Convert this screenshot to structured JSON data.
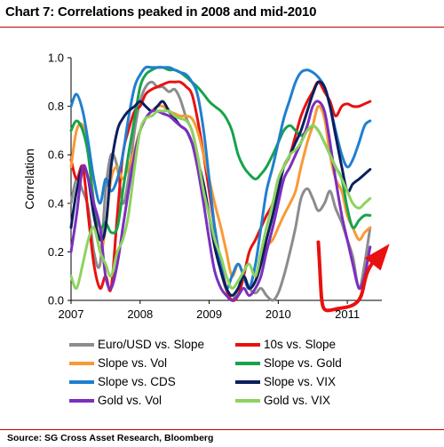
{
  "title": "Chart 7: Correlations peaked in 2008 and mid-2010",
  "source": "Source:  SG Cross Asset Research, Bloomberg",
  "chart_data": {
    "type": "line",
    "title": "Chart 7: Correlations peaked in 2008 and mid-2010",
    "xlabel": "",
    "ylabel": "Correlation",
    "xlim": [
      2007,
      2011.5
    ],
    "ylim": [
      0,
      1
    ],
    "x_ticks": [
      "2007",
      "2008",
      "2009",
      "2010",
      "2011"
    ],
    "y_ticks": [
      "0.0",
      "0.2",
      "0.4",
      "0.6",
      "0.8",
      "1.0"
    ],
    "grid": false,
    "legend_position": "bottom",
    "series": [
      {
        "name": "Euro/USD vs. Slope",
        "color": "#8c8c8c",
        "x": [
          2007.0,
          2007.08,
          2007.17,
          2007.25,
          2007.33,
          2007.42,
          2007.5,
          2007.58,
          2007.67,
          2007.75,
          2007.83,
          2007.92,
          2008.0,
          2008.08,
          2008.17,
          2008.25,
          2008.33,
          2008.42,
          2008.5,
          2008.58,
          2008.67,
          2008.75,
          2008.83,
          2008.92,
          2009.0,
          2009.08,
          2009.17,
          2009.25,
          2009.33,
          2009.42,
          2009.5,
          2009.58,
          2009.67,
          2009.75,
          2009.83,
          2009.92,
          2010.0,
          2010.08,
          2010.17,
          2010.25,
          2010.33,
          2010.42,
          2010.5,
          2010.58,
          2010.67,
          2010.75,
          2010.83,
          2010.92,
          2011.0,
          2011.08,
          2011.17,
          2011.25,
          2011.33
        ],
        "y": [
          0.4,
          0.5,
          0.45,
          0.38,
          0.2,
          0.15,
          0.45,
          0.6,
          0.55,
          0.4,
          0.5,
          0.7,
          0.82,
          0.88,
          0.9,
          0.88,
          0.88,
          0.86,
          0.87,
          0.83,
          0.75,
          0.7,
          0.6,
          0.45,
          0.35,
          0.25,
          0.12,
          0.04,
          0.0,
          0.05,
          0.1,
          0.05,
          0.03,
          0.05,
          0.02,
          0.0,
          0.03,
          0.1,
          0.2,
          0.3,
          0.42,
          0.46,
          0.42,
          0.37,
          0.4,
          0.45,
          0.38,
          0.32,
          0.25,
          0.18,
          0.05,
          0.15,
          0.3
        ]
      },
      {
        "name": "10s vs. Slope",
        "color": "#e8110f",
        "x": [
          2007.0,
          2007.08,
          2007.17,
          2007.25,
          2007.33,
          2007.42,
          2007.5,
          2007.58,
          2007.67,
          2007.75,
          2007.83,
          2007.92,
          2008.0,
          2008.08,
          2008.17,
          2008.25,
          2008.33,
          2008.42,
          2008.5,
          2008.58,
          2008.67,
          2008.75,
          2008.83,
          2008.92,
          2009.0,
          2009.08,
          2009.17,
          2009.25,
          2009.33,
          2009.42,
          2009.5,
          2009.58,
          2009.67,
          2009.75,
          2009.83,
          2009.92,
          2010.0,
          2010.08,
          2010.17,
          2010.25,
          2010.33,
          2010.42,
          2010.5,
          2010.58,
          2010.67,
          2010.75,
          2010.83,
          2010.92,
          2011.0,
          2011.08,
          2011.17,
          2011.25,
          2011.33
        ],
        "y": [
          0.58,
          0.5,
          0.55,
          0.35,
          0.15,
          0.05,
          0.1,
          0.05,
          0.35,
          0.6,
          0.7,
          0.78,
          0.8,
          0.85,
          0.87,
          0.88,
          0.89,
          0.9,
          0.9,
          0.9,
          0.88,
          0.85,
          0.75,
          0.6,
          0.45,
          0.3,
          0.15,
          0.05,
          0.0,
          0.02,
          0.1,
          0.2,
          0.25,
          0.3,
          0.35,
          0.4,
          0.5,
          0.55,
          0.6,
          0.68,
          0.76,
          0.82,
          0.86,
          0.9,
          0.86,
          0.82,
          0.76,
          0.8,
          0.81,
          0.8,
          0.8,
          0.81,
          0.82
        ]
      },
      {
        "name": "Slope vs. Vol",
        "color": "#f89a34",
        "x": [
          2007.0,
          2007.08,
          2007.17,
          2007.25,
          2007.33,
          2007.42,
          2007.5,
          2007.58,
          2007.67,
          2007.75,
          2007.83,
          2007.92,
          2008.0,
          2008.08,
          2008.17,
          2008.25,
          2008.33,
          2008.42,
          2008.5,
          2008.58,
          2008.67,
          2008.75,
          2008.83,
          2008.92,
          2009.0,
          2009.08,
          2009.17,
          2009.25,
          2009.33,
          2009.42,
          2009.5,
          2009.58,
          2009.67,
          2009.75,
          2009.83,
          2009.92,
          2010.0,
          2010.08,
          2010.17,
          2010.25,
          2010.33,
          2010.42,
          2010.5,
          2010.58,
          2010.67,
          2010.75,
          2010.83,
          2010.92,
          2011.0,
          2011.08,
          2011.17,
          2011.25,
          2011.33
        ],
        "y": [
          0.55,
          0.7,
          0.72,
          0.6,
          0.4,
          0.2,
          0.3,
          0.5,
          0.55,
          0.5,
          0.55,
          0.62,
          0.7,
          0.75,
          0.78,
          0.8,
          0.8,
          0.78,
          0.77,
          0.76,
          0.76,
          0.75,
          0.7,
          0.6,
          0.5,
          0.4,
          0.3,
          0.2,
          0.1,
          0.15,
          0.1,
          0.05,
          0.08,
          0.15,
          0.22,
          0.25,
          0.3,
          0.35,
          0.4,
          0.45,
          0.55,
          0.65,
          0.72,
          0.8,
          0.75,
          0.6,
          0.5,
          0.45,
          0.35,
          0.3,
          0.25,
          0.28,
          0.3
        ]
      },
      {
        "name": "Slope vs. Gold",
        "color": "#16a34a",
        "x": [
          2007.0,
          2007.08,
          2007.17,
          2007.25,
          2007.33,
          2007.42,
          2007.5,
          2007.58,
          2007.67,
          2007.75,
          2007.83,
          2007.92,
          2008.0,
          2008.08,
          2008.17,
          2008.25,
          2008.33,
          2008.42,
          2008.5,
          2008.58,
          2008.67,
          2008.75,
          2008.83,
          2008.92,
          2009.0,
          2009.08,
          2009.17,
          2009.25,
          2009.33,
          2009.42,
          2009.5,
          2009.58,
          2009.67,
          2009.75,
          2009.83,
          2009.92,
          2010.0,
          2010.08,
          2010.17,
          2010.25,
          2010.33,
          2010.42,
          2010.5,
          2010.58,
          2010.67,
          2010.75,
          2010.83,
          2010.92,
          2011.0,
          2011.08,
          2011.17,
          2011.25,
          2011.33
        ],
        "y": [
          0.7,
          0.74,
          0.7,
          0.6,
          0.4,
          0.3,
          0.32,
          0.28,
          0.3,
          0.45,
          0.6,
          0.75,
          0.88,
          0.93,
          0.95,
          0.96,
          0.96,
          0.95,
          0.95,
          0.94,
          0.92,
          0.9,
          0.88,
          0.85,
          0.82,
          0.8,
          0.78,
          0.75,
          0.7,
          0.6,
          0.55,
          0.52,
          0.5,
          0.52,
          0.55,
          0.6,
          0.65,
          0.7,
          0.72,
          0.7,
          0.68,
          0.7,
          0.72,
          0.7,
          0.65,
          0.6,
          0.55,
          0.5,
          0.38,
          0.3,
          0.33,
          0.35,
          0.35
        ]
      },
      {
        "name": "Slope vs. CDS",
        "color": "#1f7fd0",
        "x": [
          2007.0,
          2007.08,
          2007.17,
          2007.25,
          2007.33,
          2007.42,
          2007.5,
          2007.58,
          2007.67,
          2007.75,
          2007.83,
          2007.92,
          2008.0,
          2008.08,
          2008.17,
          2008.25,
          2008.33,
          2008.42,
          2008.5,
          2008.58,
          2008.67,
          2008.75,
          2008.83,
          2008.92,
          2009.0,
          2009.08,
          2009.17,
          2009.25,
          2009.33,
          2009.42,
          2009.5,
          2009.58,
          2009.67,
          2009.75,
          2009.83,
          2009.92,
          2010.0,
          2010.08,
          2010.17,
          2010.25,
          2010.33,
          2010.42,
          2010.5,
          2010.58,
          2010.67,
          2010.75,
          2010.83,
          2010.92,
          2011.0,
          2011.08,
          2011.17,
          2011.25,
          2011.33
        ],
        "y": [
          0.8,
          0.85,
          0.78,
          0.65,
          0.5,
          0.4,
          0.5,
          0.45,
          0.5,
          0.6,
          0.75,
          0.88,
          0.93,
          0.96,
          0.96,
          0.96,
          0.96,
          0.96,
          0.95,
          0.94,
          0.93,
          0.9,
          0.85,
          0.7,
          0.5,
          0.3,
          0.15,
          0.05,
          0.1,
          0.15,
          0.1,
          0.05,
          0.15,
          0.3,
          0.45,
          0.55,
          0.65,
          0.75,
          0.83,
          0.9,
          0.94,
          0.95,
          0.94,
          0.92,
          0.88,
          0.8,
          0.7,
          0.6,
          0.55,
          0.58,
          0.65,
          0.72,
          0.74
        ]
      },
      {
        "name": "Slope vs. VIX",
        "color": "#0b1f5c",
        "x": [
          2007.0,
          2007.08,
          2007.17,
          2007.25,
          2007.33,
          2007.42,
          2007.5,
          2007.58,
          2007.67,
          2007.75,
          2007.83,
          2007.92,
          2008.0,
          2008.08,
          2008.17,
          2008.25,
          2008.33,
          2008.42,
          2008.5,
          2008.58,
          2008.67,
          2008.75,
          2008.83,
          2008.92,
          2009.0,
          2009.08,
          2009.17,
          2009.25,
          2009.33,
          2009.42,
          2009.5,
          2009.58,
          2009.67,
          2009.75,
          2009.83,
          2009.92,
          2010.0,
          2010.08,
          2010.17,
          2010.25,
          2010.33,
          2010.42,
          2010.5,
          2010.58,
          2010.67,
          2010.75,
          2010.83,
          2010.92,
          2011.0,
          2011.08,
          2011.17,
          2011.25,
          2011.33
        ],
        "y": [
          0.3,
          0.45,
          0.55,
          0.5,
          0.35,
          0.25,
          0.3,
          0.55,
          0.7,
          0.75,
          0.78,
          0.8,
          0.82,
          0.8,
          0.78,
          0.8,
          0.82,
          0.78,
          0.75,
          0.72,
          0.7,
          0.65,
          0.58,
          0.48,
          0.35,
          0.22,
          0.12,
          0.05,
          0.02,
          0.05,
          0.1,
          0.05,
          0.08,
          0.15,
          0.25,
          0.35,
          0.45,
          0.55,
          0.6,
          0.65,
          0.7,
          0.78,
          0.85,
          0.9,
          0.88,
          0.8,
          0.68,
          0.55,
          0.45,
          0.48,
          0.5,
          0.52,
          0.54
        ]
      },
      {
        "name": "Gold vs. Vol",
        "color": "#7b2fbe",
        "x": [
          2007.0,
          2007.08,
          2007.17,
          2007.25,
          2007.33,
          2007.42,
          2007.5,
          2007.58,
          2007.67,
          2007.75,
          2007.83,
          2007.92,
          2008.0,
          2008.08,
          2008.17,
          2008.25,
          2008.33,
          2008.42,
          2008.5,
          2008.58,
          2008.67,
          2008.75,
          2008.83,
          2008.92,
          2009.0,
          2009.08,
          2009.17,
          2009.25,
          2009.33,
          2009.42,
          2009.5,
          2009.58,
          2009.67,
          2009.75,
          2009.83,
          2009.92,
          2010.0,
          2010.08,
          2010.17,
          2010.25,
          2010.33,
          2010.42,
          2010.5,
          2010.58,
          2010.67,
          2010.75,
          2010.83,
          2010.92,
          2011.0,
          2011.08,
          2011.17,
          2011.25,
          2011.33
        ],
        "y": [
          0.2,
          0.35,
          0.55,
          0.5,
          0.4,
          0.3,
          0.1,
          0.05,
          0.15,
          0.3,
          0.45,
          0.6,
          0.7,
          0.75,
          0.78,
          0.78,
          0.77,
          0.76,
          0.74,
          0.72,
          0.7,
          0.65,
          0.55,
          0.4,
          0.25,
          0.12,
          0.05,
          0.02,
          0.0,
          0.02,
          0.05,
          0.02,
          0.05,
          0.1,
          0.2,
          0.3,
          0.4,
          0.5,
          0.55,
          0.6,
          0.65,
          0.72,
          0.8,
          0.82,
          0.78,
          0.65,
          0.5,
          0.35,
          0.25,
          0.15,
          0.05,
          0.1,
          0.22
        ]
      },
      {
        "name": "Gold vs. VIX",
        "color": "#8dd35f",
        "x": [
          2007.0,
          2007.08,
          2007.17,
          2007.25,
          2007.33,
          2007.42,
          2007.5,
          2007.58,
          2007.67,
          2007.75,
          2007.83,
          2007.92,
          2008.0,
          2008.08,
          2008.17,
          2008.25,
          2008.33,
          2008.42,
          2008.5,
          2008.58,
          2008.67,
          2008.75,
          2008.83,
          2008.92,
          2009.0,
          2009.08,
          2009.17,
          2009.25,
          2009.33,
          2009.42,
          2009.5,
          2009.58,
          2009.67,
          2009.75,
          2009.83,
          2009.92,
          2010.0,
          2010.08,
          2010.17,
          2010.25,
          2010.33,
          2010.42,
          2010.5,
          2010.58,
          2010.67,
          2010.75,
          2010.83,
          2010.92,
          2011.0,
          2011.08,
          2011.17,
          2011.25,
          2011.33
        ],
        "y": [
          0.1,
          0.05,
          0.15,
          0.25,
          0.3,
          0.2,
          0.15,
          0.1,
          0.2,
          0.25,
          0.35,
          0.55,
          0.7,
          0.75,
          0.76,
          0.78,
          0.78,
          0.78,
          0.76,
          0.75,
          0.74,
          0.7,
          0.6,
          0.45,
          0.35,
          0.25,
          0.18,
          0.1,
          0.05,
          0.08,
          0.12,
          0.15,
          0.1,
          0.2,
          0.3,
          0.4,
          0.5,
          0.55,
          0.6,
          0.62,
          0.65,
          0.7,
          0.72,
          0.7,
          0.65,
          0.6,
          0.55,
          0.5,
          0.45,
          0.4,
          0.38,
          0.4,
          0.42
        ]
      }
    ],
    "annotation_arrow_color": "#e8110f"
  }
}
